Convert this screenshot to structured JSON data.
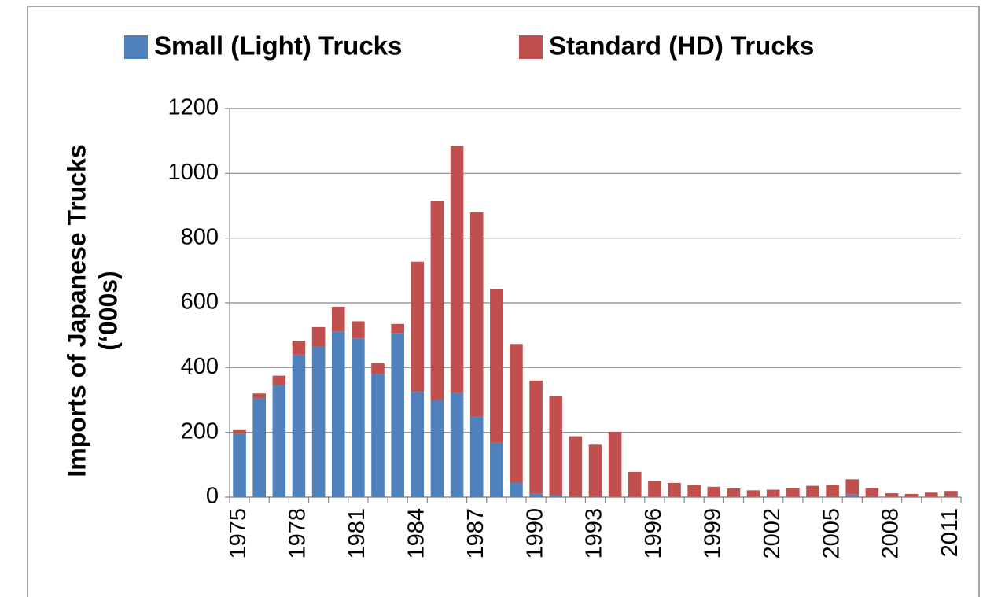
{
  "chart_data": {
    "type": "stacked-bar",
    "categories": [
      "1975",
      null,
      null,
      "1978",
      null,
      null,
      "1981",
      null,
      null,
      "1984",
      null,
      null,
      "1987",
      null,
      null,
      "1990",
      null,
      null,
      "1993",
      null,
      null,
      "1996",
      null,
      null,
      "1999",
      null,
      null,
      "2002",
      null,
      null,
      "2005",
      null,
      null,
      "2008",
      null,
      null,
      "2011"
    ],
    "series": [
      {
        "name": "Small (Light) Trucks",
        "color": "#4f81bd",
        "values": [
          195,
          305,
          345,
          440,
          465,
          512,
          490,
          380,
          507,
          325,
          300,
          322,
          248,
          168,
          45,
          12,
          5,
          3,
          3,
          2,
          2,
          2,
          2,
          2,
          2,
          2,
          2,
          2,
          2,
          2,
          3,
          8,
          3,
          2,
          2,
          2,
          3
        ]
      },
      {
        "name": "Standard (HD) Trucks",
        "color": "#c0504d",
        "values": [
          12,
          15,
          30,
          43,
          60,
          76,
          53,
          33,
          28,
          402,
          615,
          763,
          632,
          475,
          428,
          348,
          306,
          185,
          159,
          200,
          76,
          48,
          42,
          36,
          30,
          25,
          19,
          21,
          26,
          33,
          35,
          47,
          25,
          10,
          8,
          12,
          16
        ]
      }
    ],
    "y_label": [
      "Imports of Japanese Trucks",
      "(‘000s)"
    ],
    "ylim": [
      0,
      1200
    ],
    "yticks": [
      0,
      200,
      400,
      600,
      800,
      1000,
      1200
    ],
    "grid": true
  }
}
